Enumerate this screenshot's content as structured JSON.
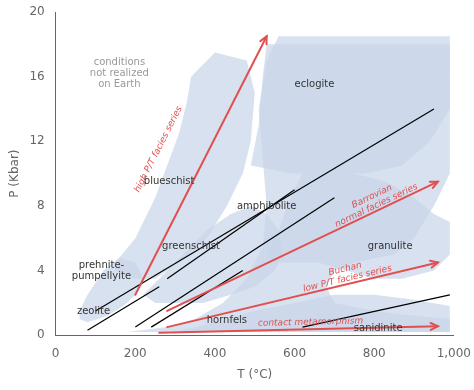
{
  "chart_data": {
    "type": "line",
    "xlabel": "T (°C)",
    "ylabel": "P (Kbar)",
    "xlim": [
      0,
      1000
    ],
    "ylim": [
      0,
      20
    ],
    "xticks": [
      0,
      200,
      400,
      600,
      800,
      {
        "value": 1000,
        "label": "1,000"
      }
    ],
    "yticks": [
      0,
      4,
      8,
      12,
      16,
      20
    ],
    "grid": false,
    "regions": [
      {
        "color": "#c8d4e8",
        "x": [
          80,
          180,
          280,
          350,
          420,
          480,
          520,
          530,
          520,
          510,
          530,
          560,
          700,
          900,
          990,
          990,
          990,
          950,
          900,
          850,
          750,
          700,
          680,
          700,
          800,
          900,
          990,
          990,
          80
        ],
        "values": [
          0.2,
          0.2,
          0.5,
          1.0,
          2.0,
          3.5,
          5.5,
          8.0,
          11.0,
          14.0,
          17.0,
          18.5,
          18.5,
          18.5,
          18.5,
          14.0,
          10.0,
          8.0,
          6.0,
          5.0,
          4.5,
          4.0,
          3.0,
          2.0,
          1.5,
          1.2,
          1.0,
          0.2,
          0.2
        ]
      },
      {
        "color": "#c8d4e8",
        "x": [
          490,
          510,
          520,
          530,
          600,
          750,
          950,
          990,
          990,
          940,
          870,
          780,
          680,
          590,
          490
        ],
        "values": [
          10.5,
          13.0,
          16.0,
          18.0,
          18.0,
          18.0,
          18.0,
          18.0,
          14.0,
          12.0,
          10.5,
          10.0,
          10.0,
          10.0,
          10.5
        ]
      },
      {
        "color": "#c8d4e8",
        "x": [
          150,
          200,
          250,
          280,
          310,
          330,
          340,
          400,
          480,
          500,
          490,
          470,
          430,
          380,
          310,
          250,
          200,
          150,
          150
        ],
        "values": [
          4.5,
          6.0,
          8.5,
          10.5,
          12.5,
          14.5,
          16.0,
          17.5,
          17.0,
          15.0,
          12.0,
          10.0,
          8.0,
          6.0,
          4.5,
          3.5,
          3.5,
          4.0,
          4.5
        ]
      },
      {
        "color": "#c8d4e8",
        "x": [
          60,
          80,
          120,
          160,
          200,
          220,
          200,
          170,
          130,
          80,
          60,
          60
        ],
        "values": [
          1.5,
          2.5,
          4.0,
          4.8,
          4.5,
          3.5,
          2.5,
          1.8,
          1.2,
          0.8,
          1.0,
          1.5
        ]
      },
      {
        "color": "#c8d4e8",
        "x": [
          220,
          260,
          320,
          380,
          440,
          490,
          530,
          560,
          570,
          550,
          500,
          440,
          370,
          300,
          250,
          220
        ],
        "values": [
          2.5,
          3.5,
          5.0,
          6.5,
          7.5,
          8.0,
          7.5,
          6.5,
          5.0,
          4.0,
          3.0,
          2.5,
          2.0,
          2.0,
          2.0,
          2.5
        ]
      },
      {
        "color": "#c8d4e8",
        "x": [
          530,
          560,
          590,
          620,
          680,
          750,
          830,
          900,
          950,
          990,
          990,
          950,
          870,
          800,
          730,
          660,
          600,
          550,
          530
        ],
        "values": [
          5.0,
          6.5,
          8.5,
          10.0,
          10.0,
          10.0,
          9.5,
          8.5,
          7.5,
          7.0,
          5.0,
          4.0,
          3.5,
          3.5,
          4.0,
          4.5,
          4.5,
          4.5,
          5.0
        ]
      },
      {
        "color": "#c8d4e8",
        "x": [
          300,
          400,
          500,
          600,
          700,
          800,
          900,
          990,
          990,
          300
        ],
        "values": [
          0.2,
          0.8,
          1.5,
          2.0,
          2.5,
          2.5,
          2.2,
          1.8,
          0.2,
          0.2
        ]
      }
    ],
    "series": [
      {
        "color": "#000000",
        "x": [
          100,
          950
        ],
        "values": [
          1.5,
          14.0
        ]
      },
      {
        "color": "#000000",
        "x": [
          200,
          700
        ],
        "values": [
          0.5,
          8.5
        ]
      },
      {
        "color": "#000000",
        "x": [
          280,
          600
        ],
        "values": [
          3.5,
          9.0
        ]
      },
      {
        "color": "#000000",
        "x": [
          240,
          470
        ],
        "values": [
          0.5,
          4.0
        ]
      },
      {
        "color": "#000000",
        "x": [
          80,
          260
        ],
        "values": [
          0.3,
          3.0
        ]
      },
      {
        "color": "#000000",
        "x": [
          620,
          990
        ],
        "values": [
          0.5,
          2.5
        ]
      }
    ],
    "arrows": [
      {
        "label": "high P/T facies series",
        "color": "#e05050",
        "x_start": 200,
        "y_start": 2.5,
        "x_end": 530,
        "y_end": 18.5,
        "label_x": 258,
        "label_y": 11.5
      },
      {
        "label": "Barrovian\nnormal facies series",
        "color": "#e05050",
        "x_start": 280,
        "y_start": 1.5,
        "x_end": 960,
        "y_end": 9.5,
        "label_x": 800,
        "label_y": 8.3
      },
      {
        "label": "Buchan\nlow P/T facies series",
        "color": "#e05050",
        "x_start": 280,
        "y_start": 0.5,
        "x_end": 960,
        "y_end": 4.5,
        "label_x": 730,
        "label_y": 3.8
      },
      {
        "label": "contact metamorphism",
        "color": "#e05050",
        "x_start": 260,
        "y_start": 0.15,
        "x_end": 960,
        "y_end": 0.55,
        "label_x": 640,
        "label_y": 0.8
      }
    ],
    "annotations": [
      {
        "text": "eclogite",
        "x": 650,
        "y": 15.5,
        "color": "#333333"
      },
      {
        "text": "blueschist",
        "x": 285,
        "y": 9.5,
        "color": "#333333"
      },
      {
        "text": "amphibolite",
        "x": 530,
        "y": 8.0,
        "color": "#333333"
      },
      {
        "text": "greenschist",
        "x": 340,
        "y": 5.5,
        "color": "#333333"
      },
      {
        "text": "granulite",
        "x": 840,
        "y": 5.5,
        "color": "#333333"
      },
      {
        "text": "prehnite-\npumpellyite",
        "x": 115,
        "y": 4.0,
        "color": "#333333"
      },
      {
        "text": "zeolite",
        "x": 95,
        "y": 1.5,
        "color": "#333333"
      },
      {
        "text": "hornfels",
        "x": 430,
        "y": 0.9,
        "color": "#333333"
      },
      {
        "text": "sanidinite",
        "x": 810,
        "y": 0.4,
        "color": "#333333"
      },
      {
        "text": "conditions\nnot realized\non Earth",
        "x": 160,
        "y": 16.2,
        "color": "#999999"
      }
    ]
  }
}
